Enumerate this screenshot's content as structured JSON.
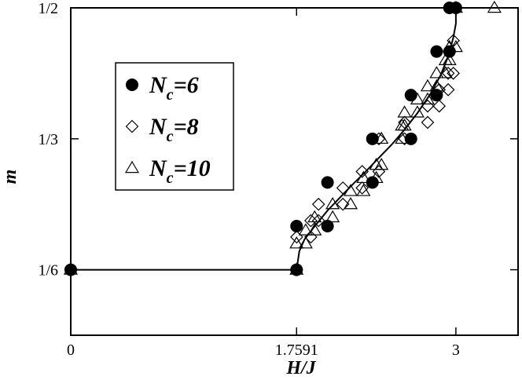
{
  "chart_data": {
    "type": "scatter",
    "xlabel": "H/J",
    "ylabel": "m",
    "xlim": [
      0,
      3.5
    ],
    "ylim": [
      0.0833,
      0.5
    ],
    "xticks": [
      {
        "value": 0,
        "label": "0"
      },
      {
        "value": 1.7591,
        "label": "1.7591"
      },
      {
        "value": 3,
        "label": "3"
      }
    ],
    "yticks": [
      {
        "value": 0.16667,
        "label": "1/6"
      },
      {
        "value": 0.33333,
        "label": "1/3"
      },
      {
        "value": 0.5,
        "label": "1/2"
      }
    ],
    "grid": false,
    "legend_position": "upper-left",
    "series": [
      {
        "legend_prefix": "N",
        "legend_sub": "c",
        "legend_suffix": "=6",
        "marker": "filled-circle",
        "x": [
          0,
          1.759,
          1.759,
          2.0,
          2.0,
          2.35,
          2.35,
          2.65,
          2.65,
          2.85,
          2.85,
          2.95,
          2.95,
          3.0
        ],
        "y": [
          0.16667,
          0.16667,
          0.2222,
          0.2222,
          0.2778,
          0.2778,
          0.3333,
          0.3333,
          0.3889,
          0.3889,
          0.4444,
          0.4444,
          0.5,
          0.5
        ]
      },
      {
        "legend_prefix": "N",
        "legend_sub": "c",
        "legend_suffix": "=8",
        "marker": "open-diamond",
        "x": [
          0,
          1.759,
          1.76,
          1.87,
          1.87,
          1.93,
          1.93,
          2.12,
          2.12,
          2.27,
          2.27,
          2.4,
          2.4,
          2.6,
          2.6,
          2.78,
          2.78,
          2.87,
          2.87,
          2.94,
          2.94,
          2.98,
          2.98,
          3.0
        ],
        "y": [
          0.16667,
          0.16667,
          0.2083,
          0.2083,
          0.2292,
          0.2292,
          0.25,
          0.25,
          0.2708,
          0.2708,
          0.2917,
          0.2917,
          0.3333,
          0.3333,
          0.3542,
          0.3542,
          0.375,
          0.375,
          0.3958,
          0.3958,
          0.4167,
          0.4167,
          0.4583,
          0.5
        ]
      },
      {
        "legend_prefix": "N",
        "legend_sub": "c",
        "legend_suffix": "=10",
        "marker": "open-triangle",
        "x": [
          0,
          1.759,
          1.759,
          1.83,
          1.83,
          1.9,
          1.9,
          2.04,
          2.04,
          2.18,
          2.18,
          2.28,
          2.28,
          2.38,
          2.38,
          2.42,
          2.42,
          2.58,
          2.58,
          2.6,
          2.6,
          2.7,
          2.7,
          2.78,
          2.78,
          2.85,
          2.85,
          2.92,
          2.92,
          2.95,
          2.95,
          3.0,
          3.0,
          3.3
        ],
        "y": [
          0.16667,
          0.16667,
          0.2,
          0.2,
          0.2167,
          0.2167,
          0.2333,
          0.2333,
          0.25,
          0.25,
          0.2667,
          0.2667,
          0.2833,
          0.2833,
          0.3,
          0.3,
          0.3333,
          0.3333,
          0.35,
          0.35,
          0.3667,
          0.3667,
          0.3833,
          0.3833,
          0.4,
          0.4,
          0.4167,
          0.4167,
          0.4333,
          0.4333,
          0.45,
          0.45,
          0.5,
          0.5
        ]
      }
    ],
    "fit_curve": {
      "x": [
        0,
        1.7591,
        1.7591,
        1.78,
        1.82,
        1.9,
        2.0,
        2.1,
        2.2,
        2.3,
        2.4,
        2.5,
        2.6,
        2.7,
        2.8,
        2.88,
        2.94,
        2.98,
        3.0,
        3.0
      ],
      "y": [
        0.16667,
        0.16667,
        0.16667,
        0.19,
        0.205,
        0.222,
        0.242,
        0.259,
        0.276,
        0.292,
        0.309,
        0.326,
        0.345,
        0.366,
        0.39,
        0.414,
        0.438,
        0.462,
        0.48,
        0.5
      ]
    }
  }
}
